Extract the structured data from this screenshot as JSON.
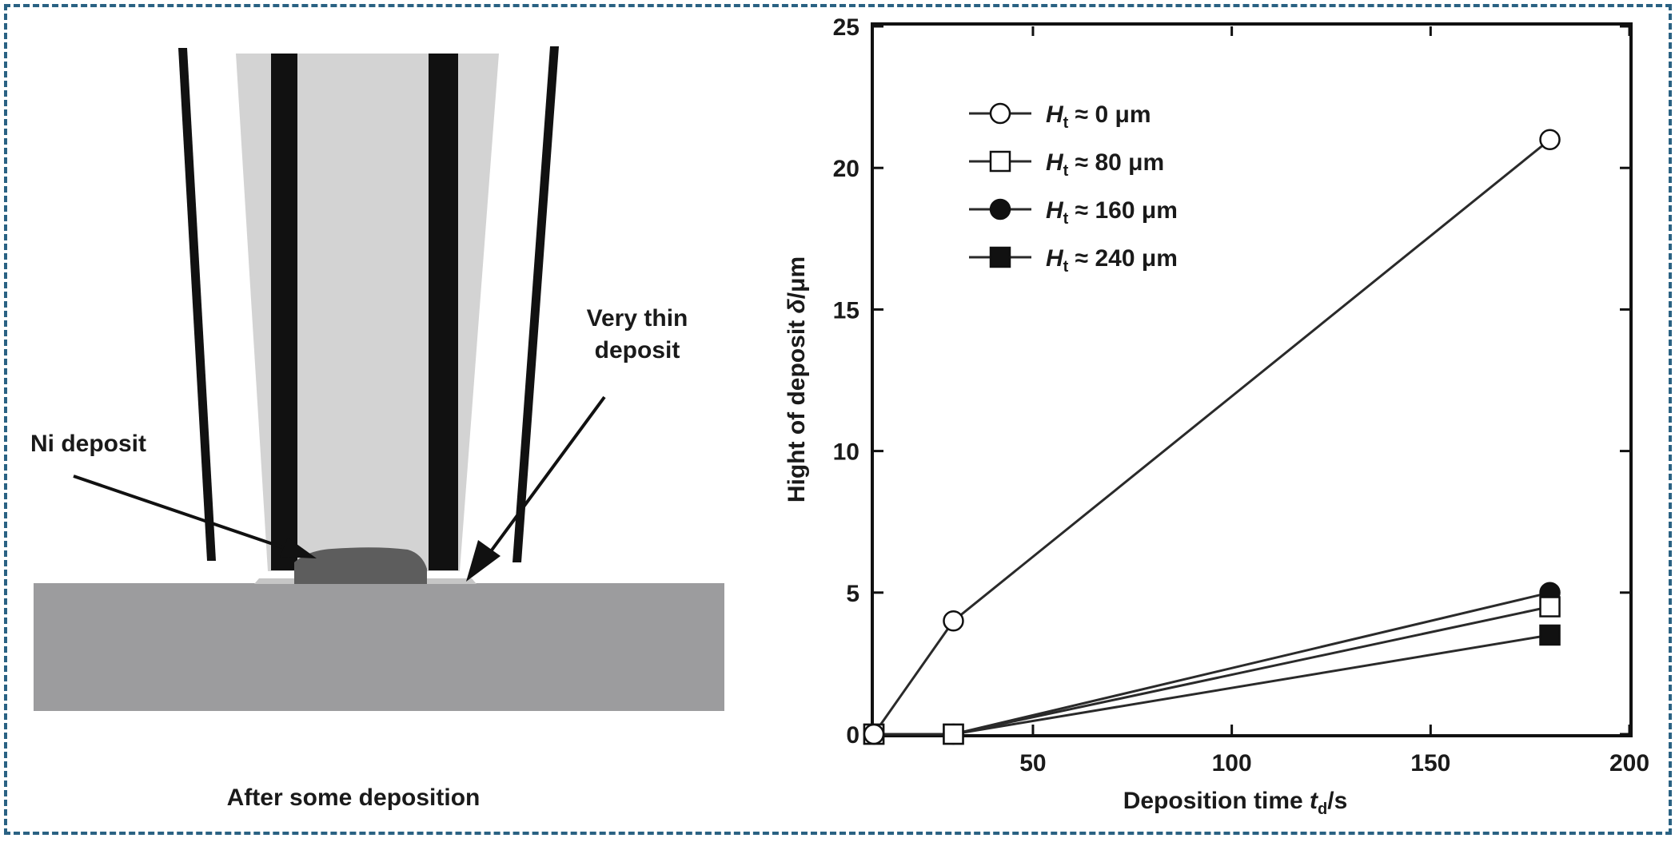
{
  "diagram": {
    "label_ni": "Ni deposit",
    "label_thin_line1": "Very thin",
    "label_thin_line2": "deposit",
    "caption": "After some deposition"
  },
  "chart_data": {
    "type": "line",
    "xlabel": "Deposition time t_d/s",
    "xlabel_main": "Deposition time ",
    "xlabel_var": "t",
    "xlabel_sub": "d",
    "xlabel_unit": "/s",
    "ylabel": "Hight of deposit δ/μm",
    "ylabel_main": "Hight of deposit ",
    "ylabel_var": "δ",
    "ylabel_unit": "/μm",
    "xlim": [
      10,
      200
    ],
    "ylim": [
      0,
      25
    ],
    "xticks": [
      50,
      100,
      150,
      200
    ],
    "yticks": [
      0,
      5,
      10,
      15,
      20,
      25
    ],
    "legend_position": "top-left",
    "series": [
      {
        "name": "H_t ≈ 0 μm",
        "legend_var": "H",
        "legend_sub": "t",
        "legend_rest": " ≈ 0 μm",
        "marker": "circle-open",
        "x": [
          10,
          30,
          180
        ],
        "y": [
          0,
          4.0,
          21.0
        ]
      },
      {
        "name": "H_t ≈ 80 μm",
        "legend_var": "H",
        "legend_sub": "t",
        "legend_rest": " ≈ 80 μm",
        "marker": "square-open",
        "x": [
          10,
          30,
          180
        ],
        "y": [
          0,
          0,
          4.5
        ]
      },
      {
        "name": "H_t ≈ 160 μm",
        "legend_var": "H",
        "legend_sub": "t",
        "legend_rest": " ≈ 160 μm",
        "marker": "circle-filled",
        "x": [
          10,
          30,
          180
        ],
        "y": [
          0,
          0,
          5.0
        ]
      },
      {
        "name": "H_t ≈ 240 μm",
        "legend_var": "H",
        "legend_sub": "t",
        "legend_rest": " ≈ 240 μm",
        "marker": "square-filled",
        "x": [
          10,
          30,
          180
        ],
        "y": [
          0,
          0,
          3.5
        ]
      }
    ]
  }
}
